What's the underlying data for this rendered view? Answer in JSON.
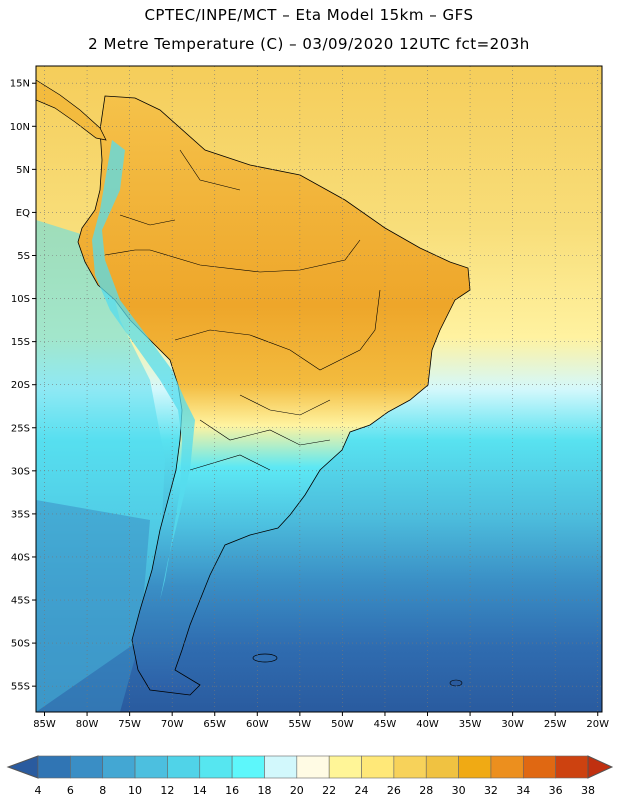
{
  "header": {
    "line1": "CPTEC/INPE/MCT –  Eta Model 15km – GFS",
    "line2": "2 Metre Temperature (C) – 03/09/2020 12UTC fct=203h"
  },
  "map": {
    "lon_min": -86,
    "lon_max": -19.5,
    "lat_min": -58,
    "lat_max": 17,
    "lat_ticks": [
      {
        "lat": 15,
        "label": "15N"
      },
      {
        "lat": 10,
        "label": "10N"
      },
      {
        "lat": 5,
        "label": "5N"
      },
      {
        "lat": 0,
        "label": "EQ"
      },
      {
        "lat": -5,
        "label": "5S"
      },
      {
        "lat": -10,
        "label": "10S"
      },
      {
        "lat": -15,
        "label": "15S"
      },
      {
        "lat": -20,
        "label": "20S"
      },
      {
        "lat": -25,
        "label": "25S"
      },
      {
        "lat": -30,
        "label": "30S"
      },
      {
        "lat": -35,
        "label": "35S"
      },
      {
        "lat": -40,
        "label": "40S"
      },
      {
        "lat": -45,
        "label": "45S"
      },
      {
        "lat": -50,
        "label": "50S"
      },
      {
        "lat": -55,
        "label": "55S"
      }
    ],
    "lon_ticks": [
      {
        "lon": -85,
        "label": "85W"
      },
      {
        "lon": -80,
        "label": "80W"
      },
      {
        "lon": -75,
        "label": "75W"
      },
      {
        "lon": -70,
        "label": "70W"
      },
      {
        "lon": -65,
        "label": "65W"
      },
      {
        "lon": -60,
        "label": "60W"
      },
      {
        "lon": -55,
        "label": "55W"
      },
      {
        "lon": -50,
        "label": "50W"
      },
      {
        "lon": -45,
        "label": "45W"
      },
      {
        "lon": -40,
        "label": "40W"
      },
      {
        "lon": -35,
        "label": "35W"
      },
      {
        "lon": -30,
        "label": "30W"
      },
      {
        "lon": -25,
        "label": "25W"
      },
      {
        "lon": -20,
        "label": "20W"
      }
    ],
    "colors": {
      "ocean_cold": "#2c5ea6",
      "ocean_cool": "#3aa0cf",
      "ocean_mild": "#55dcee",
      "ocean_warm": "#fff06e",
      "land_hot": "#f0a81e",
      "land_warm": "#f5c24a",
      "border": "#000000"
    }
  },
  "colorbar": {
    "labels": [
      "4",
      "6",
      "8",
      "10",
      "12",
      "14",
      "16",
      "18",
      "20",
      "22",
      "24",
      "26",
      "28",
      "30",
      "32",
      "34",
      "36",
      "38"
    ],
    "colors": [
      "#2a5b9f",
      "#3075b4",
      "#3a8ec5",
      "#43a7d3",
      "#4cbfdf",
      "#50d3e8",
      "#56e6f0",
      "#5df7fb",
      "#d2f8fc",
      "#fffbe4",
      "#fff597",
      "#ffe878",
      "#f7d25a",
      "#f0c241",
      "#f0aa14",
      "#ec8f1e",
      "#e06812",
      "#cd4210",
      "#c03010"
    ]
  }
}
